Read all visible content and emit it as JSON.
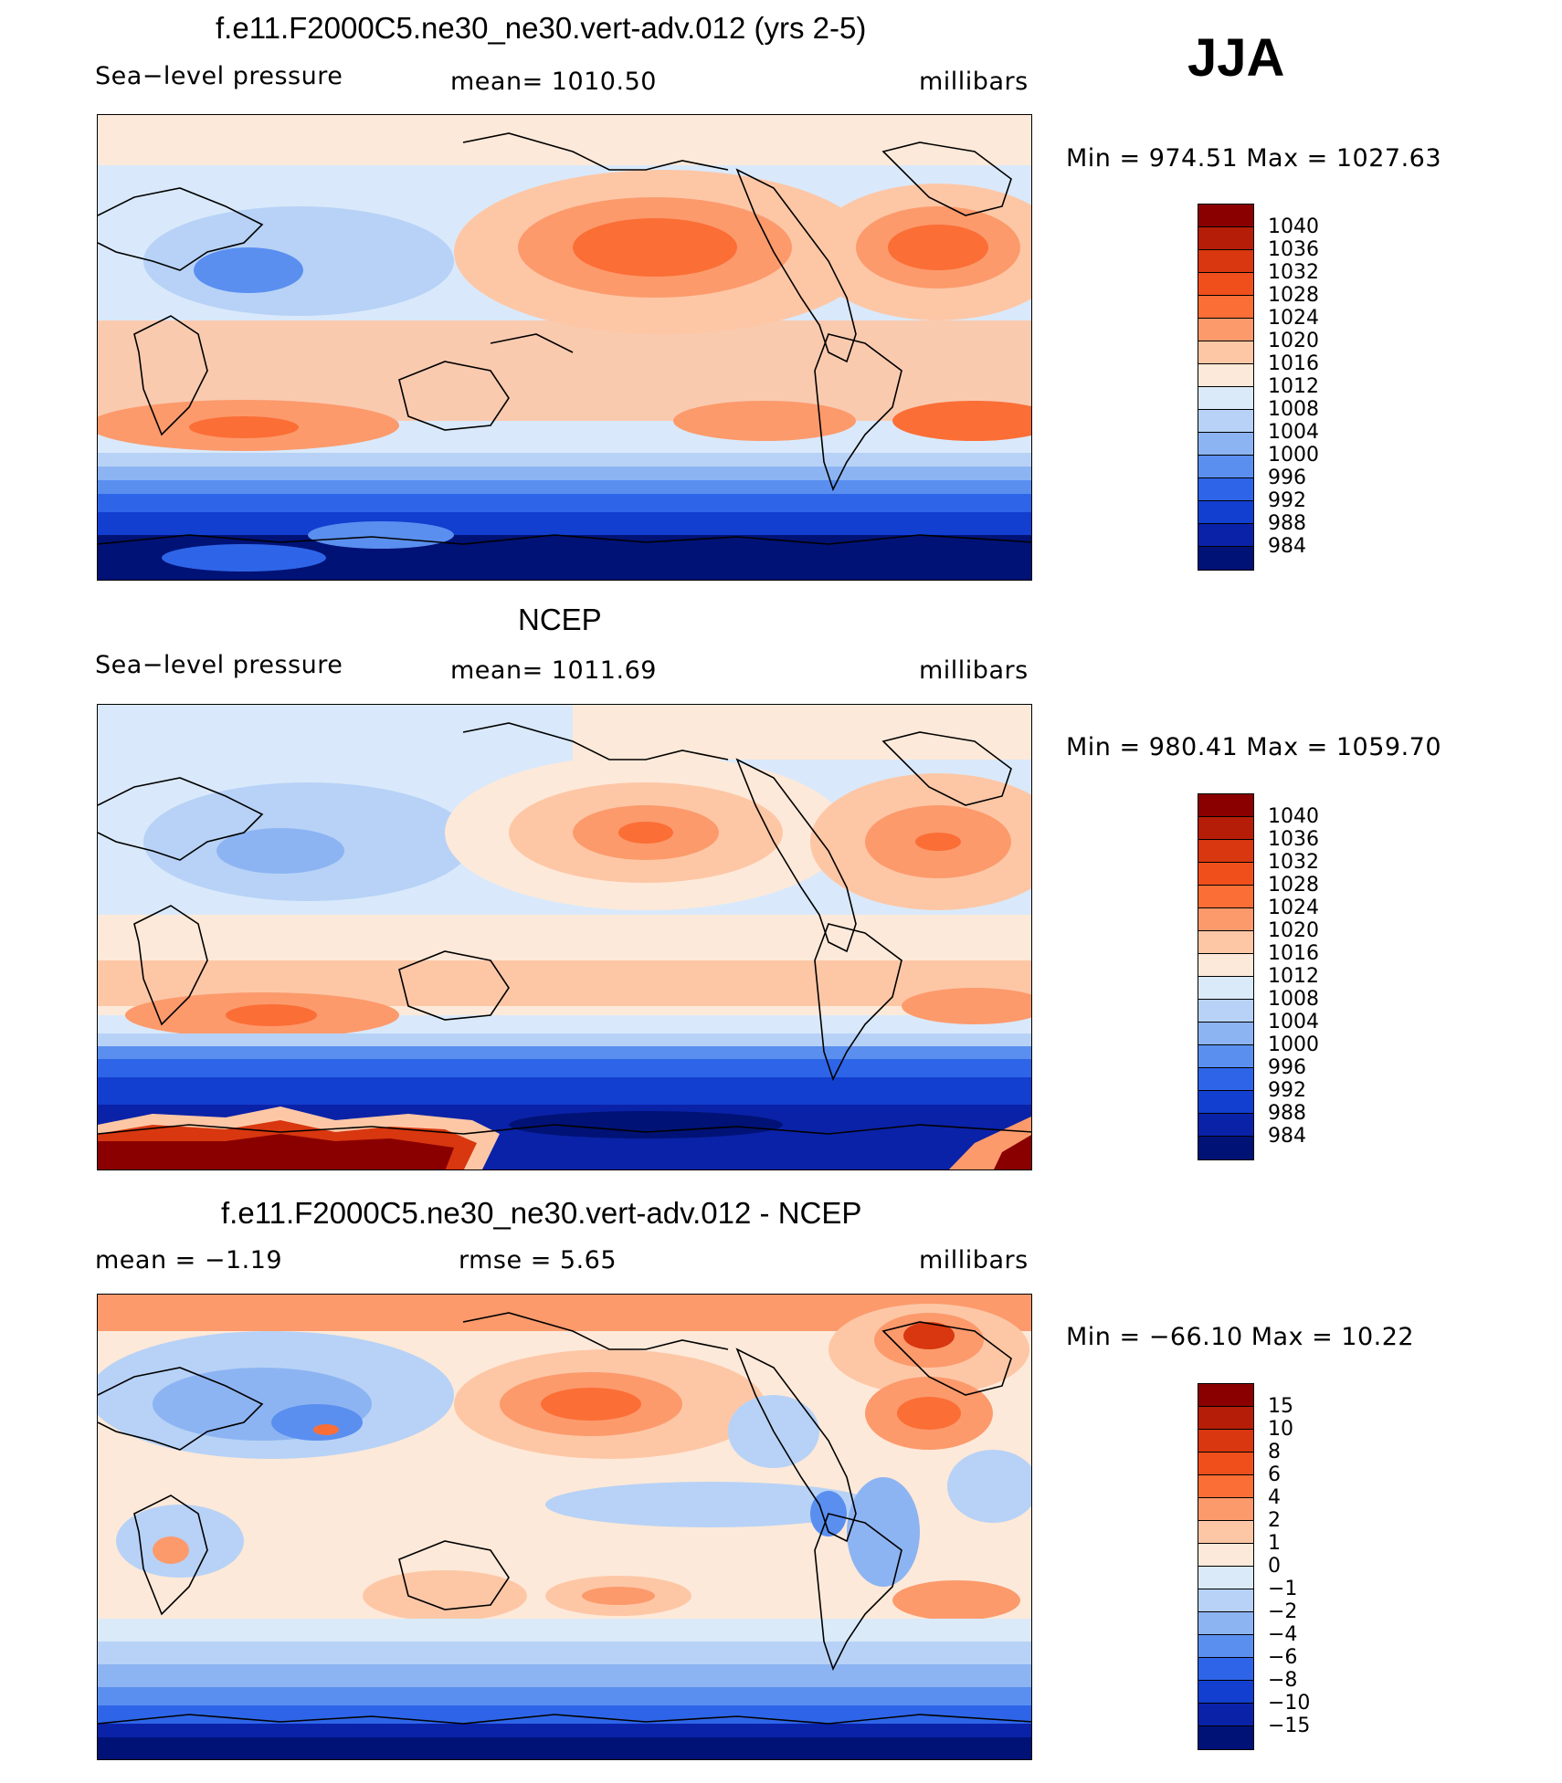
{
  "season": "JJA",
  "panels": [
    {
      "title": "f.e11.F2000C5.ne30_ne30.vert-adv.012 (yrs 2-5)",
      "left_label": "Sea−level pressure",
      "center_label": "mean=  1010.50",
      "units": "millibars",
      "minmax": "Min  =  974.51  Max  =  1027.63"
    },
    {
      "title": "NCEP",
      "left_label": "Sea−level pressure",
      "center_label": "mean=  1011.69",
      "units": "millibars",
      "minmax": "Min  =  980.41  Max  =  1059.70"
    },
    {
      "title": "f.e11.F2000C5.ne30_ne30.vert-adv.012 - NCEP",
      "left_label": "mean  =    −1.19",
      "center_label": "rmse  =     5.65",
      "units": "millibars",
      "minmax": "Min  =  −66.10  Max  =    10.22"
    }
  ],
  "colorbar_abs": {
    "labels": [
      "1040",
      "1036",
      "1032",
      "1028",
      "1024",
      "1020",
      "1016",
      "1012",
      "1008",
      "1004",
      "1000",
      "996",
      "992",
      "988",
      "984"
    ],
    "colors": [
      "#8a0000",
      "#b51d08",
      "#d8370f",
      "#f04f1c",
      "#fb6e36",
      "#fc9a6c",
      "#fdc7a6",
      "#fde9d9",
      "#dbeaf9",
      "#b7d2f6",
      "#8db4f2",
      "#5a8ff0",
      "#2e65e8",
      "#123fcf",
      "#0a22a8",
      "#001276"
    ]
  },
  "colorbar_diff": {
    "labels": [
      "15",
      "10",
      "8",
      "6",
      "4",
      "2",
      "1",
      "0",
      "−1",
      "−2",
      "−4",
      "−6",
      "−8",
      "−10",
      "−15"
    ],
    "colors": [
      "#8a0000",
      "#b51d08",
      "#d8370f",
      "#f04f1c",
      "#fb6e36",
      "#fc9a6c",
      "#fdc7a6",
      "#fde9d9",
      "#dbeaf9",
      "#b7d2f6",
      "#8db4f2",
      "#5a8ff0",
      "#2e65e8",
      "#123fcf",
      "#0a22a8",
      "#001276"
    ]
  }
}
